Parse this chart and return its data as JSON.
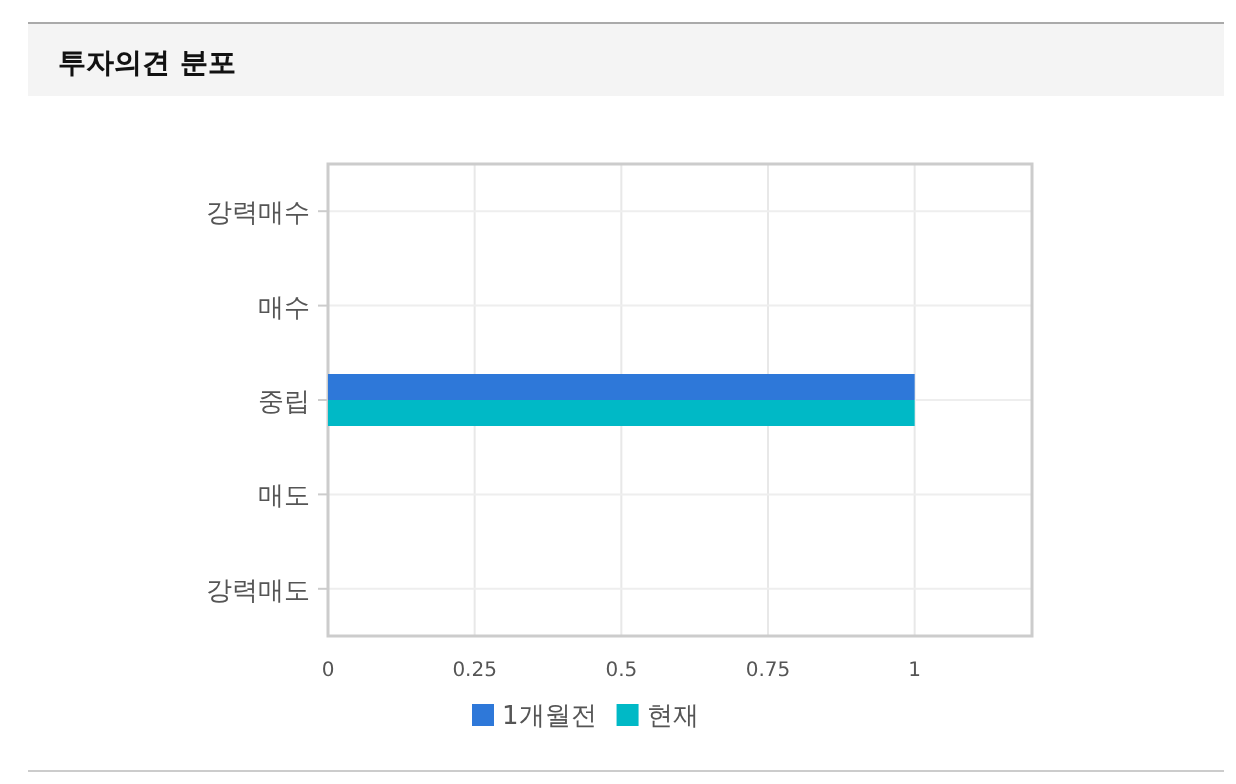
{
  "chart_data": {
    "type": "bar",
    "orientation": "horizontal",
    "title": "투자의견 분포",
    "categories": [
      "강력매수",
      "매수",
      "중립",
      "매도",
      "강력매도"
    ],
    "series": [
      {
        "name": "1개월전",
        "color": "#2e78d9",
        "values": [
          0,
          0,
          1,
          0,
          0
        ]
      },
      {
        "name": "현재",
        "color": "#00b9c6",
        "values": [
          0,
          0,
          1,
          0,
          0
        ]
      }
    ],
    "xlim": [
      0,
      1.2
    ],
    "xticks": [
      0,
      0.25,
      0.5,
      0.75,
      1
    ],
    "grid": true,
    "legend": "bottom"
  }
}
